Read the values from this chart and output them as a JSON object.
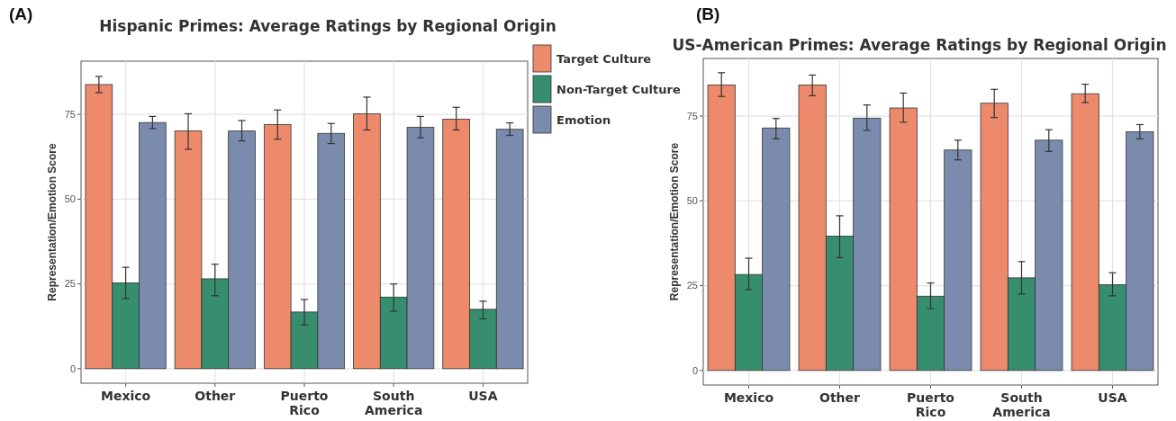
{
  "chart_data": [
    {
      "type": "bar",
      "title": "Hispanic Primes: Average Ratings by Regional Origin",
      "ylabel": "Representation/Emotion Score",
      "annotations": [
        "(A)"
      ],
      "categories": [
        "Mexico",
        "Other",
        "Puerto Rico",
        "South America",
        "USA"
      ],
      "ylim": [
        -4.3,
        90.7
      ],
      "yticks": [
        0,
        25,
        50,
        75
      ],
      "grid": true,
      "legend": "right",
      "series": [
        {
          "name": "Target Culture",
          "color": "#ec8a6b",
          "values": [
            83.8,
            70.1,
            72,
            75.2,
            73.6
          ],
          "errors": [
            [
              81.4,
              86.2
            ],
            [
              64.7,
              75.2
            ],
            [
              67.7,
              76.3
            ],
            [
              70.4,
              80.1
            ],
            [
              70.4,
              77.1
            ]
          ]
        },
        {
          "name": "Non-Target Culture",
          "color": "#368e6f",
          "values": [
            25.3,
            26.5,
            16.7,
            21.1,
            17.5
          ],
          "errors": [
            [
              20.7,
              29.9
            ],
            [
              21.5,
              30.8
            ],
            [
              12.9,
              20.4
            ],
            [
              16.9,
              25
            ],
            [
              14.7,
              19.9
            ]
          ]
        },
        {
          "name": "Emotion",
          "color": "#7a8bae",
          "values": [
            72.6,
            70.1,
            69.4,
            71.2,
            70.6
          ],
          "errors": [
            [
              70.8,
              74.4
            ],
            [
              67.2,
              73.2
            ],
            [
              66.4,
              72.3
            ],
            [
              68.1,
              74.4
            ],
            [
              68.8,
              72.5
            ]
          ]
        }
      ]
    },
    {
      "type": "bar",
      "title": "US-American Primes: Average Ratings by Regional Origin",
      "ylabel": "Representation/Emotion Score",
      "annotations": [
        "(B)"
      ],
      "categories": [
        "Mexico",
        "Other",
        "Puerto Rico",
        "South America",
        "USA"
      ],
      "ylim": [
        -4.3,
        92
      ],
      "yticks": [
        0,
        25,
        50,
        75
      ],
      "grid": true,
      "series": [
        {
          "color": "#ec8a6b",
          "values": [
            84.2,
            84.2,
            77.4,
            78.8,
            81.6
          ],
          "errors": [
            [
              80.8,
              87.8
            ],
            [
              81,
              87.1
            ],
            [
              73.2,
              81.8
            ],
            [
              74.6,
              82.9
            ],
            [
              79,
              84.4
            ]
          ]
        },
        {
          "color": "#368e6f",
          "values": [
            28.3,
            39.6,
            21.9,
            27.3,
            25.3
          ],
          "errors": [
            [
              23.8,
              33.1
            ],
            [
              33.3,
              45.6
            ],
            [
              18.2,
              25.8
            ],
            [
              22.5,
              32.1
            ],
            [
              22,
              28.8
            ]
          ]
        },
        {
          "color": "#7a8bae",
          "values": [
            71.5,
            74.4,
            65,
            67.9,
            70.4
          ],
          "errors": [
            [
              68.3,
              74.3
            ],
            [
              70.8,
              78.3
            ],
            [
              62.1,
              67.9
            ],
            [
              64.6,
              71
            ],
            [
              68.3,
              72.5
            ]
          ]
        }
      ]
    }
  ]
}
